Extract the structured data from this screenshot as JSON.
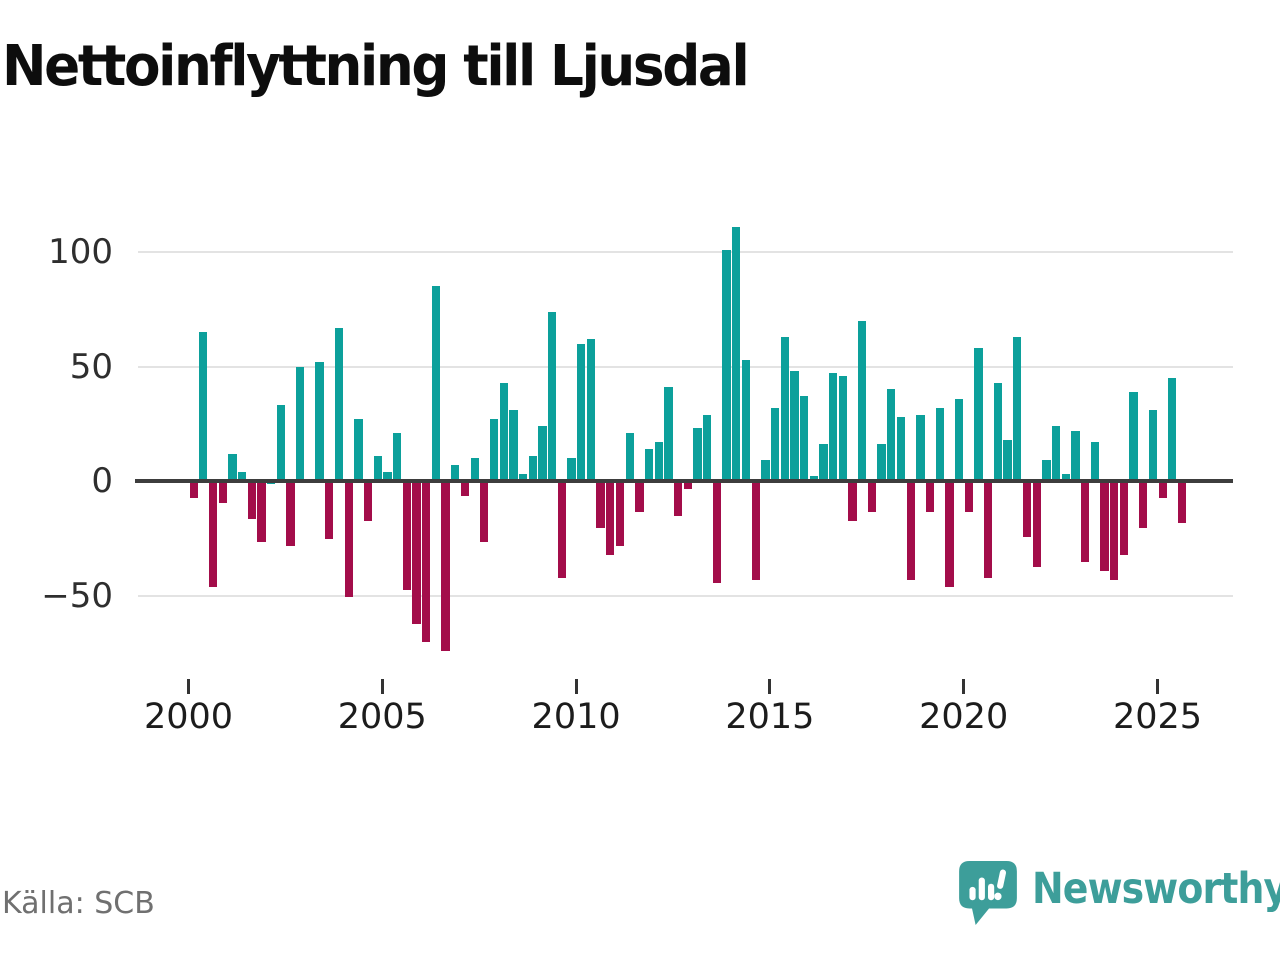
{
  "title": "Nettoinflyttning till Ljusdal",
  "source": "Källa: SCB",
  "branding": {
    "name": "Newsworthy"
  },
  "colors": {
    "positive": "#0ca09b",
    "negative": "#a30d4a",
    "axis_line": "#3d3d3d",
    "gridline": "#e3e3e3",
    "tick_label": "#2e2e2e",
    "brand_teal": "#3d9e9a",
    "source_gray": "#707070"
  },
  "chart_data": {
    "type": "bar",
    "title": "Nettoinflyttning till Ljusdal",
    "frequency": "quarterly",
    "start_period": "2000 Q1",
    "end_period": "2025 Q3",
    "grid": true,
    "legend": "none",
    "ylim": [
      -80,
      118
    ],
    "y_ticks": [
      100,
      50,
      0,
      -50
    ],
    "x_ticks": [
      "2000",
      "2005",
      "2010",
      "2015",
      "2020",
      "2025"
    ],
    "series": [
      {
        "name": "Nettoinflyttning",
        "values": [
          -7,
          65,
          -46,
          -9,
          12,
          4,
          -16,
          -26,
          0,
          33,
          -28,
          50,
          1,
          52,
          -25,
          67,
          -50,
          27,
          -17,
          11,
          4,
          21,
          -47,
          -62,
          -70,
          85,
          -74,
          7,
          -6,
          10,
          -26,
          27,
          43,
          31,
          3,
          11,
          24,
          74,
          -42,
          10,
          60,
          62,
          -20,
          -32,
          -28,
          21,
          -13,
          14,
          17,
          41,
          -15,
          -3,
          23,
          29,
          -44,
          101,
          111,
          53,
          -43,
          9,
          32,
          63,
          48,
          37,
          2,
          16,
          47,
          46,
          -17,
          70,
          -13,
          16,
          40,
          28,
          -43,
          29,
          -13,
          32,
          -46,
          36,
          -13,
          58,
          -42,
          43,
          18,
          63,
          -24,
          -37,
          9,
          24,
          3,
          22,
          -35,
          17,
          -39,
          -43,
          -32,
          39,
          -20,
          31,
          -7,
          45,
          -18
        ]
      }
    ]
  }
}
